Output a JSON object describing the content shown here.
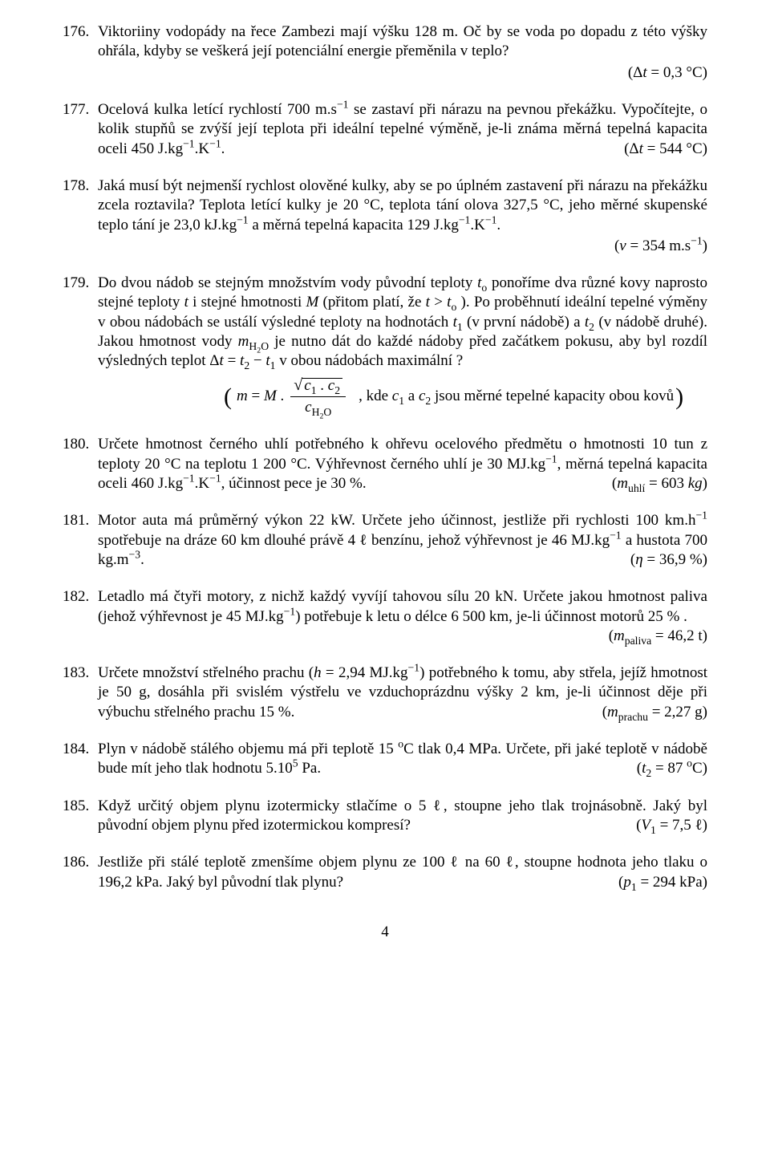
{
  "page_number": "4",
  "problems": [
    {
      "n": "176.",
      "text": "Viktoriiny vodopády na řece Zambezi mají výšku 128 m. Oč by se voda po dopadu z této výšky ohřála, kdyby se veškerá její potenciální energie přeměnila v teplo?",
      "answer_right": "(Δ<i>t</i> = 0,3 °C)"
    },
    {
      "n": "177.",
      "text": "Ocelová kulka letící rychlostí 700 m.s<sup>−1</sup> se zastaví při nárazu na pevnou překážku. Vypočítejte, o kolik stupňů se zvýší její teplota při ideální tepelné výměně, je-li známa měrná tepelná kapacita oceli 450 J.kg<sup>−1</sup>.K<sup>−1</sup>.",
      "answer_tail": "(Δ<i>t</i> = 544 °C)"
    },
    {
      "n": "178.",
      "text": "Jaká musí být nejmenší rychlost olověné kulky, aby se po úplném zastavení při nárazu na překážku zcela roztavila? Teplota letící kulky je 20 °C, teplota tání olova 327,5 °C, jeho měrné skupenské teplo tání je 23,0 kJ.kg<sup>−1</sup> a měrná tepelná kapacita 129 J.kg<sup>−1</sup>.K<sup>−1</sup>.",
      "answer_right": "(<i>v</i>  =  354 m.s<sup>−1</sup>)"
    },
    {
      "n": "179.",
      "text": "Do dvou nádob se stejným množstvím vody původní teploty <i>t</i><sub>o</sub> ponoříme dva různé kovy naprosto stejné teploty <i>t</i> i stejné hmotnosti <i>M</i> (přitom platí, že  <i>t</i> &gt;  <i>t</i><sub>o</sub> ). Po proběhnutí ideální tepelné výměny v obou nádobách se ustálí výsledné teploty na hodnotách <i>t</i><sub>1</sub> (v první nádobě) a <i>t</i><sub>2</sub> (v&nbsp;nádobě druhé). Jakou hmotnost vody <i>m</i><sub>H<sub>2</sub>O</sub> je nutno dát do každé nádoby před začátkem pokusu, aby byl rozdíl výsledných teplot Δ<i>t</i> = <i>t</i><sub>2</sub> − <i>t</i><sub>1</sub> v obou nádobách maximální ?",
      "formula_lead": "<i>m</i> = <i>M</i> .",
      "formula_top": "<i>c</i><sub>1</sub> . <i>c</i><sub>2</sub>",
      "formula_bot": "<i>c</i><sub>H<sub>2</sub>O</sub>",
      "formula_tail": ",  kde <i>c</i><sub>1</sub> a <i>c</i><sub>2</sub> jsou měrné tepelné kapacity obou kovů"
    },
    {
      "n": "180.",
      "text": "Určete hmotnost černého uhlí potřebného k ohřevu ocelového předmětu o hmotnosti 10 tun z teploty 20 °C na teplotu 1 200 °C. Výhřevnost černého uhlí je 30 MJ.kg<sup>−1</sup>, měrná tepelná kapacita oceli 460 J.kg<sup>−1</sup>.K<sup>−1</sup>, účinnost pece je 30 %.",
      "answer_tail": "(<i>m</i><sub>uhlí</sub> = 603 <i>kg</i>)"
    },
    {
      "n": "181.",
      "text": "Motor auta má průměrný výkon 22 kW. Určete jeho účinnost, jestliže při rychlosti 100 km.h<sup>−1</sup> spotřebuje na dráze 60 km dlouhé právě 4 ℓ benzínu, jehož výhřevnost je 46 MJ.kg<sup>−1</sup> a hustota 700 kg.m<sup>−3</sup>.",
      "answer_tail": "(<i>η</i> = 36,9 %)"
    },
    {
      "n": "182.",
      "text": "Letadlo má čtyři motory, z nichž každý vyvíjí tahovou sílu 20 kN. Určete jakou hmotnost paliva (jehož výhřevnost je 45 MJ.kg<sup>−1</sup>) potřebuje k letu o délce 6 500 km, je-li účinnost motorů 25 % .",
      "answer_tail": "(<i>m</i><sub>paliva</sub>  = 46,2 t)"
    },
    {
      "n": "183.",
      "text": "Určete množství střelného prachu (<i>h</i> = 2,94 MJ.kg<sup>−1</sup>) potřebného k tomu, aby střela, jejíž hmotnost je 50 g, dosáhla při svislém výstřelu ve vzduchoprázdnu výšky 2 km, je-li účinnost děje při výbuchu střelného prachu 15  %.",
      "answer_tail": "(<i>m</i><sub>prachu</sub>  = 2,27 g)"
    },
    {
      "n": "184.",
      "text": "Plyn v nádobě stálého objemu má při teplotě 15 <sup>o</sup>C tlak 0,4 MPa. Určete, při jaké teplotě v nádobě bude mít jeho tlak hodnotu 5.10<sup>5</sup> Pa.",
      "answer_tail": "(<i>t</i><sub>2</sub> = 87 <sup>o</sup>C)"
    },
    {
      "n": "185.",
      "text": "Když určitý objem plynu izotermicky stlačíme o 5 ℓ, stoupne jeho tlak trojnásobně. Jaký byl původní objem plynu před izotermickou kompresí?",
      "answer_tail": "(<i>V</i><sub>1</sub> = 7,5 ℓ)"
    },
    {
      "n": "186.",
      "text": "Jestliže při stálé teplotě zmenšíme objem plynu ze 100 ℓ na 60 ℓ, stoupne hodnota jeho tlaku o 196,2 kPa. Jaký byl původní tlak plynu?",
      "answer_tail": "(<i>p</i><sub>1</sub> = 294 kPa)"
    }
  ]
}
